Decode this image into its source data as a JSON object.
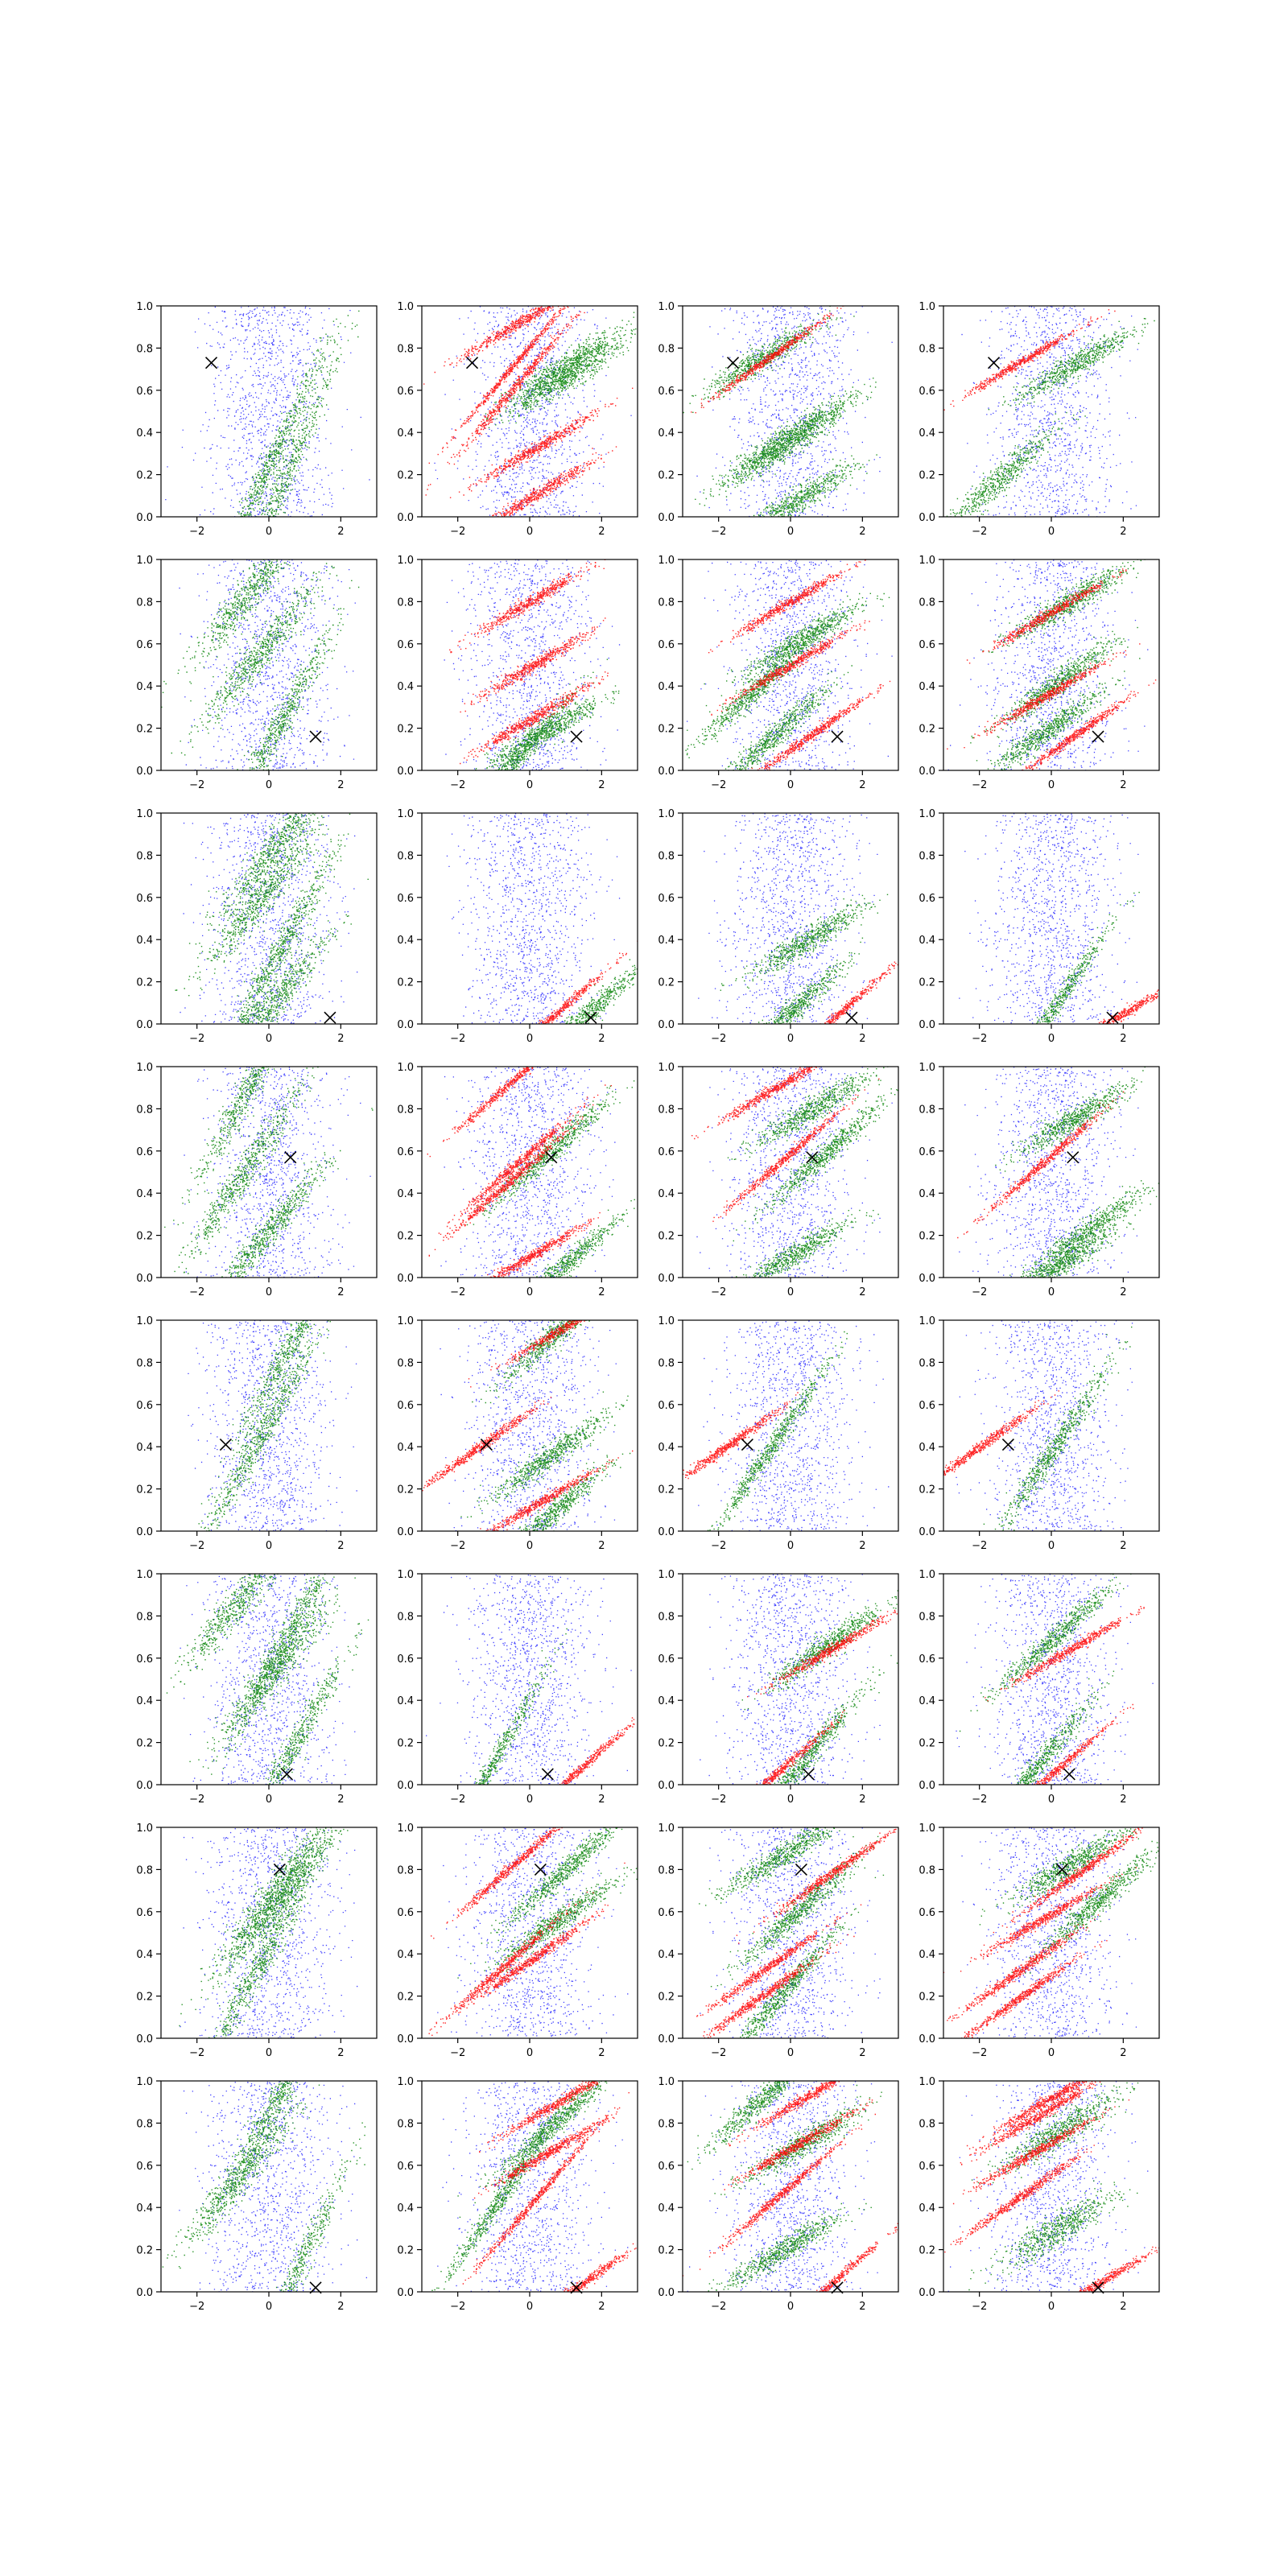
{
  "figure": {
    "rows": 8,
    "cols": 4,
    "background": "#ffffff",
    "colors": {
      "uniform": "#0000ff",
      "generated": "#008000",
      "target": "#ff0000",
      "marker": "#000000"
    },
    "xticks": [
      -2,
      0,
      2
    ],
    "xtick_labels": [
      "−2",
      "0",
      "2"
    ],
    "yticks": [
      0.0,
      0.2,
      0.4,
      0.6,
      0.8,
      1.0
    ],
    "ytick_labels": [
      "0.0",
      "0.2",
      "0.4",
      "0.6",
      "0.8",
      "1.0"
    ]
  },
  "chart_data": {
    "type": "scatter",
    "grid": false,
    "xlim": [
      -3,
      3
    ],
    "ylim": [
      0,
      1
    ],
    "marker_symbol": "x",
    "panels": [
      {
        "row": 0,
        "col": 0,
        "marker": [
          -1.6,
          0.73
        ],
        "red": [],
        "green": [
          [
            0.1,
            0.28,
            0.35,
            0.05
          ],
          [
            0.2,
            0.08,
            0.4,
            0.06
          ]
        ]
      },
      {
        "row": 0,
        "col": 1,
        "marker": [
          -1.6,
          0.73
        ],
        "red": [
          [
            -0.4,
            0.73,
            0.2,
            0.01
          ],
          [
            -0.4,
            0.62,
            0.2,
            0.015
          ],
          [
            0.2,
            0.33,
            0.1,
            0.015
          ],
          [
            0.2,
            0.11,
            0.1,
            0.015
          ],
          [
            -0.3,
            0.92,
            0.1,
            0.015
          ]
        ],
        "green": [
          [
            1.0,
            0.72,
            0.1,
            0.03
          ],
          [
            0.9,
            0.65,
            0.1,
            0.03
          ]
        ]
      },
      {
        "row": 0,
        "col": 2,
        "marker": [
          -1.6,
          0.73
        ],
        "red": [
          [
            -0.6,
            0.755,
            0.12,
            0.01
          ]
        ],
        "green": [
          [
            -0.8,
            0.75,
            0.1,
            0.03
          ],
          [
            0.3,
            0.42,
            0.1,
            0.03
          ],
          [
            -0.5,
            0.3,
            0.1,
            0.03
          ],
          [
            0.2,
            0.08,
            0.1,
            0.03
          ]
        ]
      },
      {
        "row": 0,
        "col": 3,
        "marker": [
          -1.6,
          0.73
        ],
        "red": [
          [
            -0.8,
            0.74,
            0.1,
            0.01
          ]
        ],
        "green": [
          [
            -1.5,
            0.17,
            0.15,
            0.04
          ],
          [
            0.6,
            0.72,
            0.1,
            0.03
          ]
        ]
      },
      {
        "row": 1,
        "col": 0,
        "marker": [
          1.3,
          0.16
        ],
        "red": [],
        "green": [
          [
            0.3,
            0.22,
            0.3,
            0.05
          ],
          [
            -0.5,
            0.85,
            0.2,
            0.05
          ],
          [
            -0.3,
            0.55,
            0.2,
            0.05
          ]
        ]
      },
      {
        "row": 1,
        "col": 1,
        "marker": [
          1.3,
          0.16
        ],
        "red": [
          [
            0.0,
            0.8,
            0.1,
            0.015
          ],
          [
            0.1,
            0.25,
            0.1,
            0.015
          ],
          [
            0.1,
            0.5,
            0.1,
            0.015
          ]
        ],
        "green": [
          [
            -0.5,
            0.03,
            0.2,
            0.03
          ],
          [
            0.4,
            0.18,
            0.1,
            0.03
          ]
        ]
      },
      {
        "row": 1,
        "col": 2,
        "marker": [
          1.3,
          0.16
        ],
        "red": [
          [
            0.5,
            0.16,
            0.12,
            0.012
          ],
          [
            0.0,
            0.8,
            0.1,
            0.012
          ],
          [
            0.0,
            0.5,
            0.1,
            0.012
          ]
        ],
        "green": [
          [
            -1.0,
            0.38,
            0.15,
            0.03
          ],
          [
            -0.5,
            0.16,
            0.15,
            0.03
          ],
          [
            0.3,
            0.62,
            0.1,
            0.03
          ]
        ]
      },
      {
        "row": 1,
        "col": 3,
        "marker": [
          1.3,
          0.16
        ],
        "red": [
          [
            0.6,
            0.16,
            0.12,
            0.012
          ],
          [
            -0.2,
            0.35,
            0.1,
            0.012
          ],
          [
            0.0,
            0.75,
            0.1,
            0.012
          ]
        ],
        "green": [
          [
            0.2,
            0.42,
            0.12,
            0.03
          ],
          [
            -0.2,
            0.18,
            0.12,
            0.03
          ],
          [
            0.5,
            0.8,
            0.1,
            0.03
          ]
        ]
      },
      {
        "row": 2,
        "col": 0,
        "marker": [
          1.7,
          0.03
        ],
        "red": [],
        "green": [
          [
            0.3,
            0.35,
            0.3,
            0.05
          ],
          [
            -0.2,
            0.6,
            0.2,
            0.05
          ],
          [
            0.1,
            0.1,
            0.2,
            0.05
          ],
          [
            0.2,
            0.85,
            0.2,
            0.05
          ]
        ]
      },
      {
        "row": 2,
        "col": 1,
        "marker": [
          1.7,
          0.03
        ],
        "red": [
          [
            0.6,
            0.03,
            0.15,
            0.012
          ]
        ],
        "green": [
          [
            1.5,
            0.035,
            0.15,
            0.03
          ]
        ]
      },
      {
        "row": 2,
        "col": 2,
        "marker": [
          1.7,
          0.03
        ],
        "red": [
          [
            1.2,
            0.03,
            0.15,
            0.012
          ]
        ],
        "green": [
          [
            0.0,
            0.06,
            0.15,
            0.03
          ],
          [
            0.5,
            0.4,
            0.1,
            0.03
          ]
        ]
      },
      {
        "row": 2,
        "col": 3,
        "marker": [
          1.7,
          0.03
        ],
        "red": [
          [
            1.8,
            0.03,
            0.1,
            0.012
          ]
        ],
        "green": [
          [
            0.0,
            0.06,
            0.25,
            0.03
          ]
        ]
      },
      {
        "row": 3,
        "col": 0,
        "marker": [
          0.6,
          0.57
        ],
        "red": [],
        "green": [
          [
            -0.7,
            0.5,
            0.25,
            0.05
          ],
          [
            -0.5,
            0.92,
            0.3,
            0.05
          ],
          [
            0.0,
            0.22,
            0.2,
            0.04
          ]
        ]
      },
      {
        "row": 3,
        "col": 1,
        "marker": [
          0.6,
          0.57
        ],
        "red": [
          [
            -0.5,
            0.93,
            0.15,
            0.012
          ],
          [
            -0.3,
            0.55,
            0.15,
            0.012
          ],
          [
            -0.6,
            0.45,
            0.15,
            0.012
          ],
          [
            0.0,
            0.1,
            0.1,
            0.012
          ]
        ],
        "green": [
          [
            0.6,
            0.6,
            0.15,
            0.03
          ],
          [
            0.9,
            0.05,
            0.15,
            0.03
          ]
        ]
      },
      {
        "row": 3,
        "col": 2,
        "marker": [
          0.6,
          0.57
        ],
        "red": [
          [
            -0.2,
            0.56,
            0.15,
            0.012
          ],
          [
            -0.4,
            0.9,
            0.1,
            0.012
          ]
        ],
        "green": [
          [
            0.9,
            0.58,
            0.15,
            0.03
          ],
          [
            0.6,
            0.8,
            0.1,
            0.03
          ],
          [
            0.0,
            0.1,
            0.1,
            0.03
          ]
        ]
      },
      {
        "row": 3,
        "col": 3,
        "marker": [
          0.6,
          0.57
        ],
        "red": [
          [
            -0.2,
            0.55,
            0.15,
            0.012
          ]
        ],
        "green": [
          [
            0.6,
            0.75,
            0.1,
            0.03
          ],
          [
            1.0,
            0.22,
            0.12,
            0.03
          ],
          [
            0.1,
            0.05,
            0.1,
            0.03
          ]
        ]
      },
      {
        "row": 4,
        "col": 0,
        "marker": [
          -1.2,
          0.41
        ],
        "red": [],
        "green": [
          [
            -0.3,
            0.43,
            0.3,
            0.05
          ],
          [
            0.6,
            0.88,
            0.3,
            0.05
          ]
        ]
      },
      {
        "row": 4,
        "col": 1,
        "marker": [
          -1.2,
          0.41
        ],
        "red": [
          [
            -1.4,
            0.4,
            0.12,
            0.012
          ],
          [
            1.0,
            0.97,
            0.1,
            0.012
          ],
          [
            0.2,
            0.13,
            0.1,
            0.012
          ]
        ],
        "green": [
          [
            0.8,
            0.95,
            0.15,
            0.03
          ],
          [
            0.6,
            0.08,
            0.15,
            0.03
          ],
          [
            0.5,
            0.35,
            0.12,
            0.03
          ]
        ]
      },
      {
        "row": 4,
        "col": 2,
        "marker": [
          -1.2,
          0.41
        ],
        "red": [
          [
            -1.8,
            0.4,
            0.12,
            0.012
          ]
        ],
        "green": [
          [
            -0.5,
            0.41,
            0.25,
            0.03
          ]
        ]
      },
      {
        "row": 4,
        "col": 3,
        "marker": [
          -1.2,
          0.41
        ],
        "red": [
          [
            -2.0,
            0.4,
            0.12,
            0.012
          ]
        ],
        "green": [
          [
            0.0,
            0.38,
            0.25,
            0.04
          ]
        ]
      },
      {
        "row": 5,
        "col": 0,
        "marker": [
          0.5,
          0.05
        ],
        "red": [],
        "green": [
          [
            0.5,
            0.13,
            0.3,
            0.05
          ],
          [
            0.4,
            0.67,
            0.3,
            0.05
          ],
          [
            -0.8,
            0.88,
            0.2,
            0.05
          ],
          [
            0.2,
            0.55,
            0.2,
            0.05
          ]
        ]
      },
      {
        "row": 5,
        "col": 1,
        "marker": [
          0.5,
          0.05
        ],
        "red": [
          [
            1.3,
            0.06,
            0.15,
            0.012
          ]
        ],
        "green": [
          [
            -1.2,
            0.05,
            0.3,
            0.03
          ]
        ]
      },
      {
        "row": 5,
        "col": 2,
        "marker": [
          0.5,
          0.05
        ],
        "red": [
          [
            -0.5,
            0.04,
            0.15,
            0.012
          ],
          [
            1.2,
            0.65,
            0.1,
            0.012
          ]
        ],
        "green": [
          [
            1.0,
            0.66,
            0.12,
            0.03
          ],
          [
            0.4,
            0.12,
            0.2,
            0.03
          ]
        ]
      },
      {
        "row": 5,
        "col": 3,
        "marker": [
          0.5,
          0.05
        ],
        "red": [
          [
            0.0,
            0.05,
            0.15,
            0.012
          ],
          [
            0.5,
            0.64,
            0.1,
            0.012
          ]
        ],
        "green": [
          [
            -0.5,
            0.07,
            0.2,
            0.03
          ],
          [
            0.1,
            0.7,
            0.15,
            0.03
          ]
        ]
      },
      {
        "row": 6,
        "col": 0,
        "marker": [
          0.3,
          0.8
        ],
        "red": [],
        "green": [
          [
            -0.2,
            0.37,
            0.3,
            0.05
          ],
          [
            0.5,
            0.77,
            0.2,
            0.05
          ],
          [
            0.0,
            0.6,
            0.2,
            0.04
          ]
        ]
      },
      {
        "row": 6,
        "col": 1,
        "marker": [
          0.3,
          0.8
        ],
        "red": [
          [
            -0.4,
            0.83,
            0.15,
            0.012
          ],
          [
            -0.8,
            0.33,
            0.15,
            0.012
          ],
          [
            0.1,
            0.38,
            0.12,
            0.012
          ]
        ],
        "green": [
          [
            1.0,
            0.8,
            0.15,
            0.03
          ],
          [
            0.7,
            0.55,
            0.12,
            0.03
          ]
        ]
      },
      {
        "row": 6,
        "col": 2,
        "marker": [
          0.3,
          0.8
        ],
        "red": [
          [
            1.2,
            0.79,
            0.12,
            0.012
          ],
          [
            -0.7,
            0.33,
            0.12,
            0.012
          ],
          [
            -0.8,
            0.2,
            0.12,
            0.012
          ]
        ],
        "green": [
          [
            -0.3,
            0.2,
            0.2,
            0.03
          ],
          [
            0.2,
            0.6,
            0.15,
            0.03
          ],
          [
            -0.2,
            0.87,
            0.1,
            0.03
          ]
        ]
      },
      {
        "row": 6,
        "col": 3,
        "marker": [
          0.3,
          0.8
        ],
        "red": [
          [
            0.8,
            0.79,
            0.12,
            0.012
          ],
          [
            -0.9,
            0.32,
            0.12,
            0.012
          ],
          [
            -0.9,
            0.19,
            0.12,
            0.012
          ],
          [
            -0.3,
            0.56,
            0.1,
            0.012
          ]
        ],
        "green": [
          [
            1.3,
            0.65,
            0.15,
            0.03
          ],
          [
            0.5,
            0.82,
            0.1,
            0.03
          ]
        ]
      },
      {
        "row": 7,
        "col": 0,
        "marker": [
          1.3,
          0.02
        ],
        "red": [],
        "green": [
          [
            0.6,
            0.04,
            0.35,
            0.05
          ],
          [
            0.3,
            0.94,
            0.3,
            0.05
          ],
          [
            -0.8,
            0.55,
            0.2,
            0.05
          ]
        ]
      },
      {
        "row": 7,
        "col": 1,
        "marker": [
          1.3,
          0.02
        ],
        "red": [
          [
            0.1,
            0.43,
            0.2,
            0.012
          ],
          [
            1.3,
            0.02,
            0.12,
            0.012
          ],
          [
            0.8,
            0.9,
            0.1,
            0.012
          ],
          [
            0.5,
            0.66,
            0.1,
            0.012
          ]
        ],
        "green": [
          [
            -0.8,
            0.45,
            0.25,
            0.03
          ],
          [
            0.7,
            0.8,
            0.15,
            0.03
          ]
        ]
      },
      {
        "row": 7,
        "col": 2,
        "marker": [
          1.3,
          0.02
        ],
        "red": [
          [
            -0.3,
            0.46,
            0.15,
            0.012
          ],
          [
            1.0,
            0.02,
            0.15,
            0.012
          ],
          [
            0.5,
            0.93,
            0.1,
            0.012
          ],
          [
            0.2,
            0.7,
            0.1,
            0.012
          ]
        ],
        "green": [
          [
            -0.7,
            0.93,
            0.15,
            0.03
          ],
          [
            0.3,
            0.7,
            0.1,
            0.03
          ],
          [
            -0.2,
            0.2,
            0.1,
            0.03
          ]
        ]
      },
      {
        "row": 7,
        "col": 3,
        "marker": [
          1.3,
          0.02
        ],
        "red": [
          [
            -0.8,
            0.46,
            0.12,
            0.012
          ],
          [
            1.2,
            0.03,
            0.1,
            0.012
          ],
          [
            -0.5,
            0.66,
            0.1,
            0.012
          ],
          [
            0.0,
            0.92,
            0.1,
            0.012
          ],
          [
            -0.3,
            0.84,
            0.1,
            0.012
          ]
        ],
        "green": [
          [
            0.2,
            0.3,
            0.1,
            0.04
          ],
          [
            0.2,
            0.76,
            0.1,
            0.04
          ]
        ]
      }
    ]
  }
}
